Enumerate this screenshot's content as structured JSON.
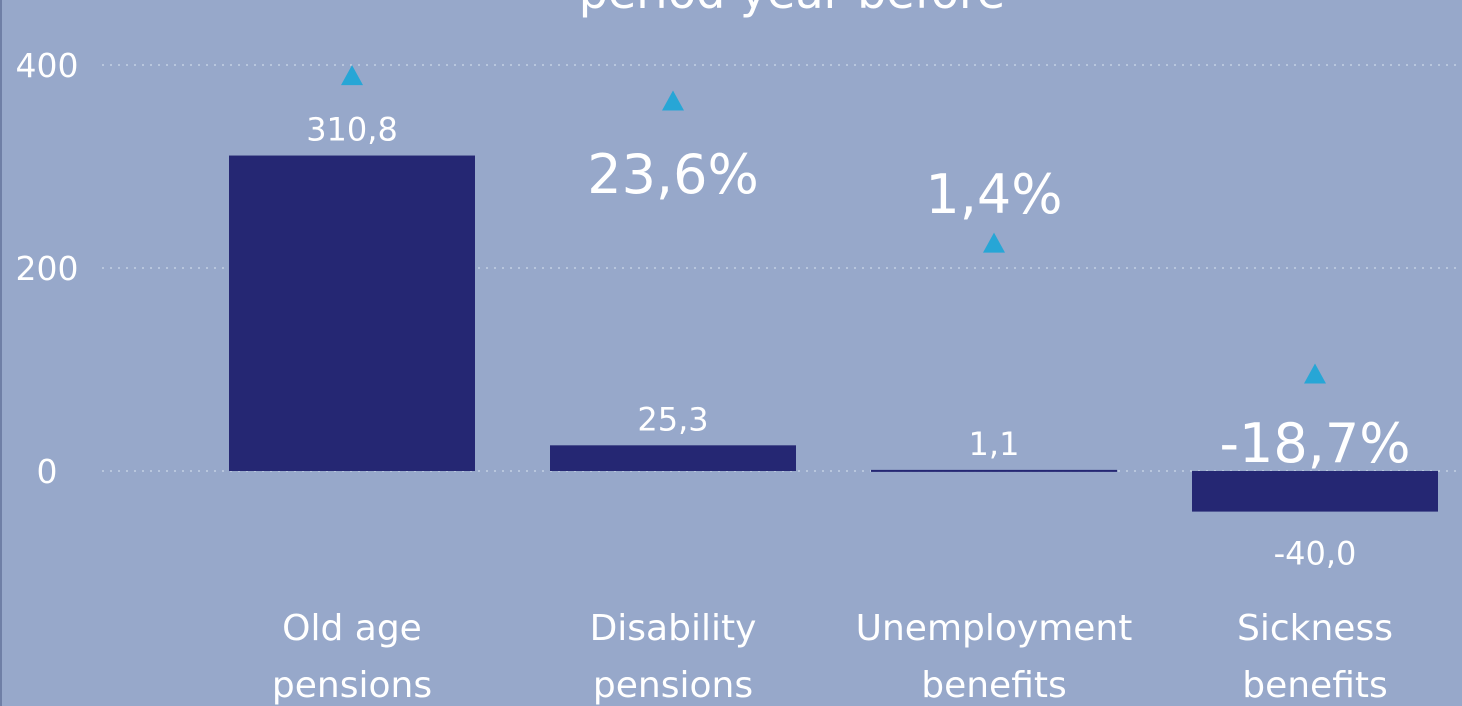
{
  "chart_data": {
    "type": "bar",
    "title": "period year before",
    "categories": [
      [
        "Old age",
        "pensions"
      ],
      [
        "Disability",
        "pensions"
      ],
      [
        "Unemployment",
        "benefits"
      ],
      [
        "Sickness",
        "benefits"
      ]
    ],
    "values": [
      310.8,
      25.3,
      1.1,
      -40.0
    ],
    "value_labels": [
      "310,8",
      "25,3",
      "1,1",
      "-40,0"
    ],
    "change_labels": [
      "",
      "23,6%",
      "1,4%",
      "-18,7%"
    ],
    "change_markers": [
      390,
      365,
      225,
      96
    ],
    "ylim": [
      -130,
      465
    ],
    "yticks": [
      0,
      200,
      400
    ],
    "ytick_labels": [
      "0",
      "200",
      "400"
    ],
    "grid": true,
    "colors": {
      "bar": "#252773",
      "marker": "#27a6d6",
      "background": "#97a8ca",
      "text": "#ffffff"
    }
  }
}
